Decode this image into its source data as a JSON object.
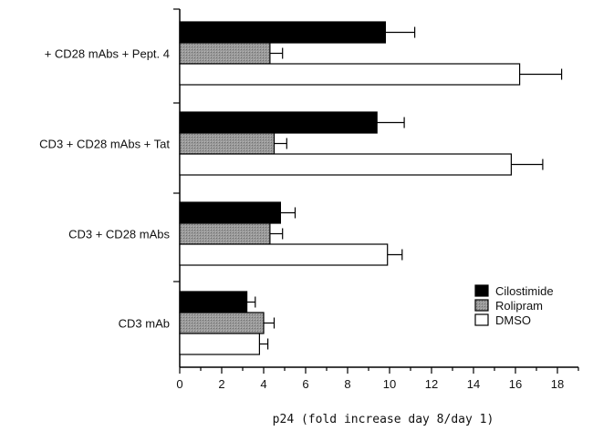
{
  "chart_data": {
    "type": "bar",
    "orientation": "horizontal",
    "categories": [
      "CD3 mAb",
      "CD3 + CD28 mAbs",
      "CD3 + CD28 mAbs + Tat",
      "+ CD28 mAbs + Pept. 4"
    ],
    "series": [
      {
        "name": "Cilostimide",
        "color": "#000000",
        "values": [
          3.2,
          4.8,
          9.4,
          9.8
        ],
        "errors": [
          0.4,
          0.7,
          1.3,
          1.4
        ]
      },
      {
        "name": "Rolipram",
        "color": "#8c8c8c",
        "values": [
          4.0,
          4.3,
          4.5,
          4.3
        ],
        "errors": [
          0.5,
          0.6,
          0.6,
          0.6
        ]
      },
      {
        "name": "DMSO",
        "color": "#ffffff",
        "values": [
          3.8,
          9.9,
          15.8,
          16.2
        ],
        "errors": [
          0.4,
          0.7,
          1.5,
          2.0
        ]
      }
    ],
    "xlabel": "p24 (fold increase day 8/day 1)",
    "ylabel": "",
    "title": "",
    "xlim": [
      0,
      19
    ],
    "xticks": [
      "0",
      "2",
      "4",
      "6",
      "8",
      "10",
      "12",
      "14",
      "16",
      "18"
    ],
    "legend_position": "right, lower",
    "grid": false
  }
}
